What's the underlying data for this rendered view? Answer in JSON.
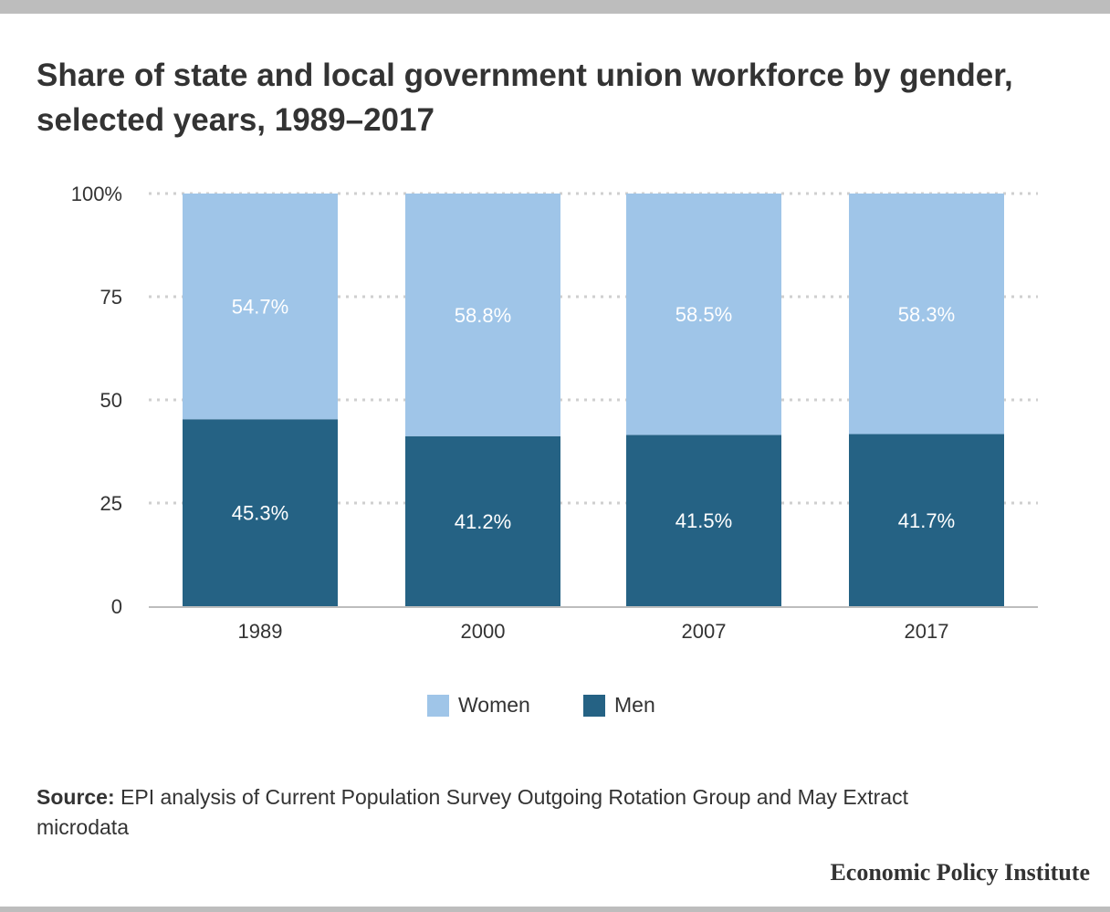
{
  "title": "Share of state and local government union workforce by gender, selected years, 1989–2017",
  "chart_data": {
    "type": "bar",
    "stacked": true,
    "categories": [
      "1989",
      "2000",
      "2007",
      "2017"
    ],
    "series": [
      {
        "name": "Men",
        "values": [
          45.3,
          41.2,
          41.5,
          41.7
        ],
        "labels": [
          "45.3%",
          "41.2%",
          "41.5%",
          "41.7%"
        ],
        "color": "#256284"
      },
      {
        "name": "Women",
        "values": [
          54.7,
          58.8,
          58.5,
          58.3
        ],
        "labels": [
          "54.7%",
          "58.8%",
          "58.5%",
          "58.3%"
        ],
        "color": "#9fc5e8"
      }
    ],
    "ylim": [
      0,
      100
    ],
    "yticks": [
      0,
      25,
      50,
      75,
      100
    ],
    "ytick_labels": [
      "0",
      "25",
      "50",
      "75",
      "100%"
    ],
    "grid": true,
    "legend_position": "bottom-center"
  },
  "legend": {
    "women_label": "Women",
    "men_label": "Men"
  },
  "source": {
    "prefix": "Source:",
    "text": " EPI analysis of Current Population Survey Outgoing Rotation Group and May Extract microdata"
  },
  "brand": "Economic Policy Institute"
}
